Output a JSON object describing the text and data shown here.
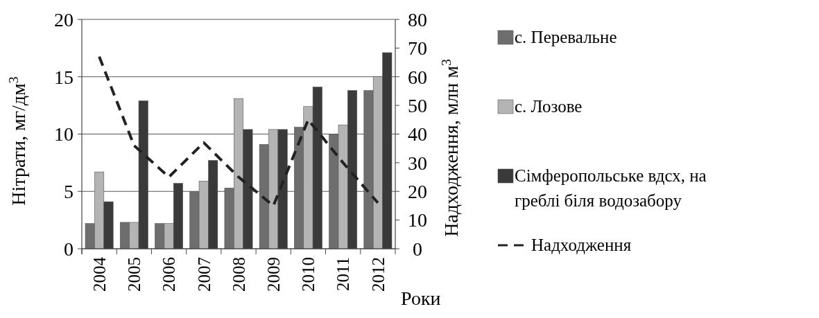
{
  "chart_data": {
    "type": "bar",
    "categories": [
      "2004",
      "2005",
      "2006",
      "2007",
      "2008",
      "2009",
      "2010",
      "2011",
      "2012"
    ],
    "xlabel": "Роки",
    "ylabel": "Нітрати, мг/дм$^{3}$",
    "y2label": "Надходження, млн м$^{3}$",
    "ylim": [
      0,
      20
    ],
    "yticks": [
      0,
      5,
      10,
      15,
      20
    ],
    "y2lim": [
      0,
      80
    ],
    "y2ticks": [
      0,
      10,
      20,
      30,
      40,
      50,
      60,
      70,
      80
    ],
    "grid": "y",
    "legend": "right",
    "series": [
      {
        "name": "с. Перевальне",
        "color": "#6e6e6e",
        "values": [
          2.2,
          2.3,
          2.2,
          5.0,
          5.3,
          9.1,
          10.6,
          10.0,
          13.8
        ]
      },
      {
        "name": "с. Лозове",
        "color": "#b4b4b4",
        "values": [
          6.7,
          2.3,
          2.2,
          5.9,
          13.1,
          10.4,
          12.4,
          10.8,
          15.0
        ]
      },
      {
        "name": "Сімферопольське вдсх, на греблі біля водозабору",
        "color": "#3a3a3a",
        "values": [
          4.1,
          12.9,
          5.7,
          7.7,
          10.4,
          10.4,
          14.1,
          13.8,
          17.1
        ]
      },
      {
        "name": "Надходження",
        "type": "line",
        "axis": "y2",
        "color": "#222222",
        "line_style": "dashed",
        "values": [
          67,
          36,
          25,
          37,
          25,
          15,
          45,
          30,
          16
        ]
      }
    ]
  }
}
